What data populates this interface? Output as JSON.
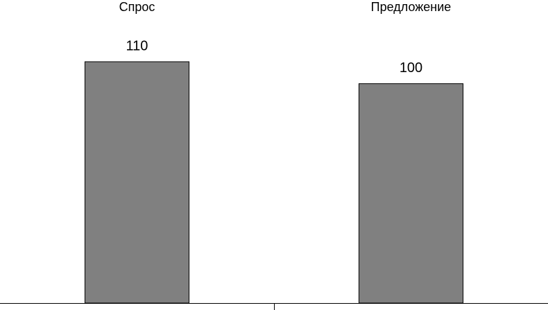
{
  "chart_data": {
    "type": "bar",
    "categories": [
      "Спрос",
      "Предложение"
    ],
    "values": [
      110,
      100
    ],
    "color": "#808080"
  }
}
